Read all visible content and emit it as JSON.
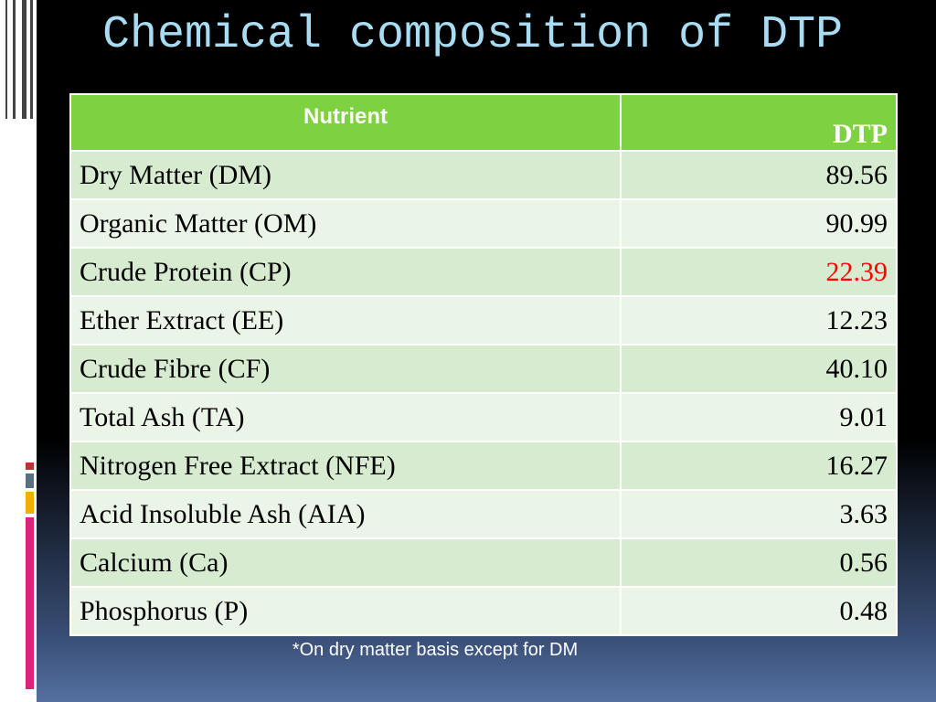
{
  "title": "Chemical composition of DTP",
  "table": {
    "header": [
      "Nutrient",
      "DTP"
    ],
    "header_color": "#7ed140",
    "rows": [
      {
        "nutrient": "Dry Matter (DM)",
        "value": "89.56"
      },
      {
        "nutrient": "Organic Matter (OM)",
        "value": "90.99"
      },
      {
        "nutrient": "Crude Protein (CP)",
        "value": "22.39",
        "color": "#ff0000"
      },
      {
        "nutrient": "Ether Extract (EE)",
        "value": "12.23"
      },
      {
        "nutrient": "Crude Fibre (CF)",
        "value": "40.10"
      },
      {
        "nutrient": "Total Ash (TA)",
        "value": "9.01"
      },
      {
        "nutrient": "Nitrogen Free Extract (NFE)",
        "value": "16.27"
      },
      {
        "nutrient": "Acid Insoluble Ash (AIA)",
        "value": "3.63"
      },
      {
        "nutrient": "Calcium (Ca)",
        "value": "0.56"
      },
      {
        "nutrient": "Phosphorus (P)",
        "value": "0.48"
      }
    ]
  },
  "footnote": "*On dry matter basis except for DM"
}
